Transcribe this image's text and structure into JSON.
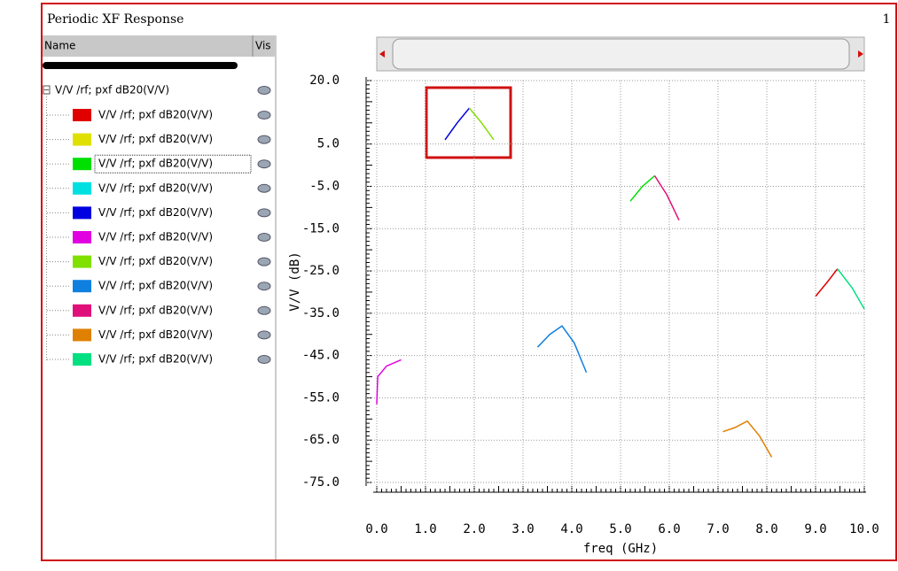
{
  "window": {
    "title": "Periodic XF Response",
    "number": "1"
  },
  "tree": {
    "header_name": "Name",
    "header_vis": "Vis",
    "root": "V/V /rf; pxf dB20(V/V)"
  },
  "chart_data": {
    "type": "line",
    "xlabel": "freq (GHz)",
    "ylabel": "V/V (dB)",
    "xlim": [
      0,
      10
    ],
    "ylim": [
      -75,
      20
    ],
    "grid": true,
    "xticks": [
      {
        "value": 0,
        "label": "0.0"
      },
      {
        "value": 1,
        "label": "1.0"
      },
      {
        "value": 2,
        "label": "2.0"
      },
      {
        "value": 3,
        "label": "3.0"
      },
      {
        "value": 4,
        "label": "4.0"
      },
      {
        "value": 5,
        "label": "5.0"
      },
      {
        "value": 6,
        "label": "6.0"
      },
      {
        "value": 7,
        "label": "7.0"
      },
      {
        "value": 8,
        "label": "8.0"
      },
      {
        "value": 9,
        "label": "9.0"
      },
      {
        "value": 10,
        "label": "10.0"
      }
    ],
    "yticks": [
      {
        "value": 20,
        "label": "20.0"
      },
      {
        "value": 5,
        "label": "5.0"
      },
      {
        "value": -5,
        "label": "-5.0"
      },
      {
        "value": -15,
        "label": "-15.0"
      },
      {
        "value": -25,
        "label": "-25.0"
      },
      {
        "value": -35,
        "label": "-35.0"
      },
      {
        "value": -45,
        "label": "-45.0"
      },
      {
        "value": -55,
        "label": "-55.0"
      },
      {
        "value": -65,
        "label": "-65.0"
      },
      {
        "value": -75,
        "label": "-75.0"
      }
    ],
    "series": [
      {
        "name": "V/V /rf; pxf dB20(V/V)",
        "color": "#e00000",
        "x": [
          9.0,
          9.25,
          9.45
        ],
        "values": [
          -31,
          -27.5,
          -24.5
        ]
      },
      {
        "name": "V/V /rf; pxf dB20(V/V)",
        "color": "#e0e000",
        "x": [],
        "values": []
      },
      {
        "name": "V/V /rf; pxf dB20(V/V)",
        "color": "#00e000",
        "x": [
          5.2,
          5.45,
          5.7
        ],
        "values": [
          -8.5,
          -5,
          -2.5
        ]
      },
      {
        "name": "V/V /rf; pxf dB20(V/V)",
        "color": "#00e0e0",
        "x": [],
        "values": []
      },
      {
        "name": "V/V /rf; pxf dB20(V/V)",
        "color": "#0000e0",
        "x": [
          1.4,
          1.65,
          1.9
        ],
        "values": [
          6,
          10,
          13.5
        ]
      },
      {
        "name": "V/V /rf; pxf dB20(V/V)",
        "color": "#e000e0",
        "x": [
          0,
          0.02,
          0.2,
          0.5
        ],
        "values": [
          -56.5,
          -50,
          -47.5,
          -46
        ]
      },
      {
        "name": "V/V /rf; pxf dB20(V/V)",
        "color": "#80e000",
        "x": [
          1.9,
          2.15,
          2.4
        ],
        "values": [
          13.5,
          10,
          6
        ]
      },
      {
        "name": "V/V /rf; pxf dB20(V/V)",
        "color": "#1080e0",
        "x": [
          3.3,
          3.55,
          3.8,
          4.05,
          4.3
        ],
        "values": [
          -43,
          -40,
          -38,
          -42,
          -49
        ]
      },
      {
        "name": "V/V /rf; pxf dB20(V/V)",
        "color": "#e0107a",
        "x": [
          5.7,
          5.95,
          6.2
        ],
        "values": [
          -2.5,
          -7,
          -13
        ]
      },
      {
        "name": "V/V /rf; pxf dB20(V/V)",
        "color": "#e08000",
        "x": [
          7.1,
          7.35,
          7.6,
          7.85,
          8.1
        ],
        "values": [
          -63,
          -62,
          -60.5,
          -64,
          -69
        ]
      },
      {
        "name": "V/V /rf; pxf dB20(V/V)",
        "color": "#00e080",
        "x": [
          9.45,
          9.75,
          10.0
        ],
        "values": [
          -24.5,
          -29,
          -34
        ]
      }
    ]
  }
}
